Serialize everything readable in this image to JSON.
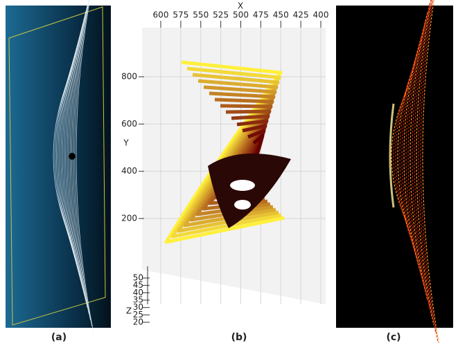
{
  "panels": [
    {
      "caption": "(a)"
    },
    {
      "caption": "(b)",
      "axes": {
        "x_label": "X",
        "y_label": "Y",
        "z_label": "Z",
        "x_ticks": [
          600,
          575,
          550,
          525,
          500,
          475,
          450,
          425,
          400
        ],
        "y_ticks": [
          800,
          600,
          400,
          200
        ],
        "z_ticks": [
          50,
          45,
          40,
          35,
          30,
          25,
          20
        ]
      }
    },
    {
      "caption": "(c)"
    }
  ]
}
